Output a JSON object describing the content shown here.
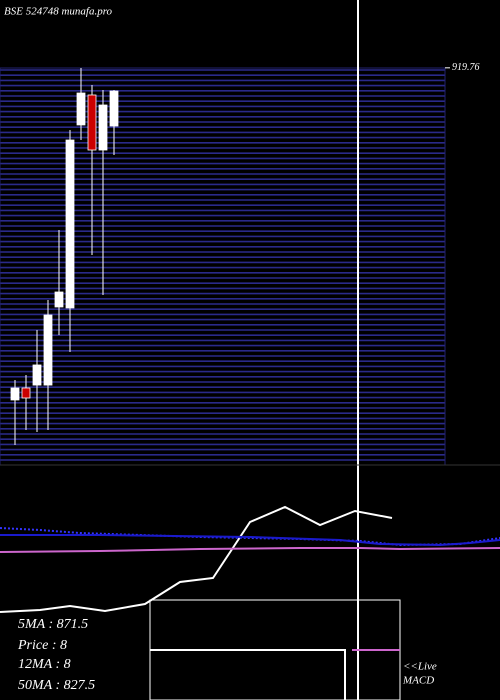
{
  "chart_data": [
    {
      "type": "candlestick",
      "title": "BSE 524748 munafa.pro",
      "categories": [
        null,
        null,
        null,
        null,
        null,
        null,
        null,
        null,
        null,
        null
      ],
      "opens": [
        485.1,
        500.8,
        504.6,
        504.6,
        606.8,
        605.5,
        845.0,
        884.2,
        812.2,
        843.6
      ],
      "closes": [
        500.8,
        487.7,
        530.9,
        596.3,
        626.4,
        825.3,
        886.8,
        812.2,
        871.1,
        889.4
      ],
      "highs": [
        511.2,
        517.8,
        576.7,
        615.9,
        707.5,
        838.4,
        919.5,
        897.3,
        890.7,
        890.7
      ],
      "lows": [
        426.2,
        445.8,
        443.2,
        445.8,
        570.1,
        547.9,
        825.3,
        674.8,
        622.5,
        805.7
      ],
      "up_color": "#ffffff",
      "down_color": "#cc0000",
      "ylim": [
        400,
        930
      ],
      "yticks": [
        {
          "value": 919.76,
          "label": "919.76"
        }
      ]
    },
    {
      "type": "line",
      "xlim": [
        0,
        500
      ],
      "ylim": [
        0,
        200
      ],
      "series": [
        {
          "color": "#ffffff",
          "x": [
            0,
            40,
            70,
            105,
            145,
            180,
            213,
            250,
            285,
            320,
            355,
            392
          ],
          "values": [
            88,
            90,
            94,
            89,
            96,
            118,
            122,
            178,
            193,
            175,
            189,
            182
          ]
        },
        {
          "color": "#3333ff",
          "dash": true,
          "x": [
            0,
            40,
            80,
            200,
            300,
            360,
            400,
            460,
            500
          ],
          "values": [
            172,
            170,
            167,
            163,
            161,
            159,
            155,
            156,
            162
          ]
        },
        {
          "color": "#1a1acc",
          "x": [
            0,
            100,
            250,
            340,
            380,
            440,
            470,
            500
          ],
          "values": [
            165,
            165,
            163,
            160,
            156,
            155,
            157,
            160
          ]
        },
        {
          "color": "#cc66cc",
          "x": [
            0,
            100,
            200,
            300,
            360,
            400,
            500
          ],
          "values": [
            148,
            149,
            151,
            152,
            152,
            151,
            152
          ]
        }
      ]
    }
  ],
  "legend": {
    "ma5": "5MA : 871.5",
    "price": "Price : 8",
    "ma12": "12MA : 8",
    "ma50": "50MA : 827.5",
    "live": "<<Live",
    "macd": "MACD"
  }
}
